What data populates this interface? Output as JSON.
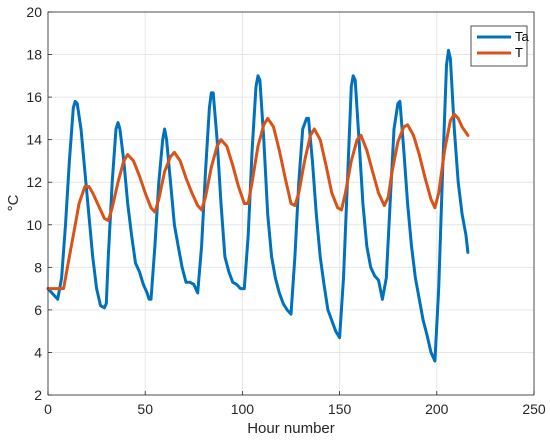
{
  "chart_data": {
    "type": "line",
    "title": "",
    "xlabel": "Hour number",
    "ylabel": "°C",
    "xlim": [
      0,
      250
    ],
    "ylim": [
      2,
      20
    ],
    "xticks": [
      0,
      50,
      100,
      150,
      200,
      250
    ],
    "yticks": [
      2,
      4,
      6,
      8,
      10,
      12,
      14,
      16,
      18,
      20
    ],
    "grid": true,
    "legend_position": "top-right",
    "series": [
      {
        "name": "Ta",
        "color": "#0072BD",
        "points": [
          [
            0,
            7.0
          ],
          [
            3,
            6.7
          ],
          [
            5,
            6.5
          ],
          [
            7,
            7.5
          ],
          [
            9,
            10.0
          ],
          [
            11,
            13.0
          ],
          [
            13,
            15.5
          ],
          [
            14,
            15.8
          ],
          [
            15,
            15.7
          ],
          [
            17,
            14.5
          ],
          [
            19,
            12.5
          ],
          [
            21,
            10.5
          ],
          [
            23,
            8.5
          ],
          [
            25,
            7.0
          ],
          [
            27,
            6.2
          ],
          [
            29,
            6.1
          ],
          [
            30,
            6.3
          ],
          [
            31,
            8.5
          ],
          [
            33,
            12.0
          ],
          [
            35,
            14.5
          ],
          [
            36,
            14.8
          ],
          [
            37,
            14.5
          ],
          [
            39,
            13.0
          ],
          [
            41,
            11.0
          ],
          [
            43,
            9.5
          ],
          [
            45,
            8.2
          ],
          [
            47,
            7.8
          ],
          [
            49,
            7.2
          ],
          [
            51,
            6.8
          ],
          [
            52,
            6.5
          ],
          [
            53,
            6.5
          ],
          [
            55,
            9.0
          ],
          [
            57,
            12.0
          ],
          [
            59,
            14.0
          ],
          [
            60,
            14.5
          ],
          [
            61,
            14.0
          ],
          [
            63,
            12.0
          ],
          [
            65,
            10.0
          ],
          [
            67,
            9.0
          ],
          [
            69,
            8.0
          ],
          [
            71,
            7.3
          ],
          [
            73,
            7.3
          ],
          [
            75,
            7.2
          ],
          [
            77,
            6.8
          ],
          [
            79,
            9.0
          ],
          [
            81,
            12.5
          ],
          [
            83,
            15.5
          ],
          [
            84,
            16.2
          ],
          [
            85,
            16.2
          ],
          [
            87,
            14.0
          ],
          [
            89,
            11.0
          ],
          [
            91,
            8.5
          ],
          [
            93,
            7.8
          ],
          [
            95,
            7.3
          ],
          [
            97,
            7.2
          ],
          [
            99,
            7.0
          ],
          [
            101,
            7.0
          ],
          [
            103,
            9.5
          ],
          [
            105,
            13.5
          ],
          [
            107,
            16.5
          ],
          [
            108,
            17.0
          ],
          [
            109,
            16.8
          ],
          [
            111,
            14.0
          ],
          [
            113,
            10.5
          ],
          [
            115,
            8.5
          ],
          [
            117,
            7.5
          ],
          [
            119,
            6.8
          ],
          [
            121,
            6.3
          ],
          [
            123,
            6.0
          ],
          [
            125,
            5.8
          ],
          [
            127,
            8.5
          ],
          [
            129,
            12.0
          ],
          [
            131,
            14.5
          ],
          [
            133,
            15.0
          ],
          [
            134,
            15.0
          ],
          [
            136,
            13.0
          ],
          [
            138,
            10.5
          ],
          [
            140,
            8.5
          ],
          [
            142,
            7.2
          ],
          [
            144,
            6.0
          ],
          [
            146,
            5.5
          ],
          [
            148,
            5.0
          ],
          [
            150,
            4.7
          ],
          [
            152,
            7.5
          ],
          [
            154,
            12.0
          ],
          [
            156,
            16.5
          ],
          [
            157,
            17.0
          ],
          [
            158,
            16.8
          ],
          [
            160,
            14.0
          ],
          [
            162,
            11.0
          ],
          [
            164,
            9.0
          ],
          [
            166,
            8.0
          ],
          [
            168,
            7.6
          ],
          [
            170,
            7.4
          ],
          [
            172,
            6.5
          ],
          [
            174,
            7.5
          ],
          [
            176,
            11.0
          ],
          [
            178,
            14.5
          ],
          [
            180,
            15.7
          ],
          [
            181,
            15.8
          ],
          [
            183,
            13.5
          ],
          [
            185,
            11.0
          ],
          [
            187,
            9.0
          ],
          [
            189,
            7.5
          ],
          [
            191,
            6.5
          ],
          [
            193,
            5.5
          ],
          [
            195,
            4.8
          ],
          [
            197,
            4.0
          ],
          [
            199,
            3.6
          ],
          [
            201,
            7.0
          ],
          [
            203,
            12.5
          ],
          [
            205,
            17.5
          ],
          [
            206,
            18.2
          ],
          [
            207,
            17.8
          ],
          [
            209,
            14.5
          ],
          [
            211,
            12.0
          ],
          [
            213,
            10.5
          ],
          [
            215,
            9.5
          ],
          [
            216,
            8.7
          ]
        ]
      },
      {
        "name": "T",
        "color": "#D95319",
        "points": [
          [
            0,
            7.0
          ],
          [
            8,
            7.0
          ],
          [
            10,
            8.0
          ],
          [
            13,
            9.5
          ],
          [
            16,
            11.0
          ],
          [
            19,
            11.8
          ],
          [
            21,
            11.8
          ],
          [
            23,
            11.5
          ],
          [
            26,
            10.9
          ],
          [
            29,
            10.3
          ],
          [
            31,
            10.2
          ],
          [
            33,
            10.8
          ],
          [
            36,
            12.0
          ],
          [
            39,
            13.0
          ],
          [
            41,
            13.3
          ],
          [
            44,
            13.0
          ],
          [
            47,
            12.3
          ],
          [
            50,
            11.5
          ],
          [
            53,
            10.8
          ],
          [
            55,
            10.6
          ],
          [
            57,
            11.2
          ],
          [
            60,
            12.5
          ],
          [
            63,
            13.2
          ],
          [
            65,
            13.4
          ],
          [
            68,
            13.0
          ],
          [
            71,
            12.2
          ],
          [
            74,
            11.5
          ],
          [
            77,
            10.9
          ],
          [
            79,
            10.7
          ],
          [
            81,
            11.3
          ],
          [
            84,
            12.7
          ],
          [
            87,
            13.7
          ],
          [
            89,
            14.0
          ],
          [
            92,
            13.7
          ],
          [
            95,
            12.8
          ],
          [
            98,
            11.8
          ],
          [
            101,
            11.0
          ],
          [
            103,
            11.0
          ],
          [
            105,
            12.0
          ],
          [
            108,
            13.7
          ],
          [
            111,
            14.7
          ],
          [
            113,
            15.0
          ],
          [
            116,
            14.6
          ],
          [
            119,
            13.5
          ],
          [
            122,
            12.2
          ],
          [
            125,
            11.0
          ],
          [
            127,
            10.9
          ],
          [
            129,
            11.5
          ],
          [
            132,
            13.0
          ],
          [
            135,
            14.2
          ],
          [
            137,
            14.5
          ],
          [
            140,
            14.0
          ],
          [
            143,
            12.8
          ],
          [
            146,
            11.5
          ],
          [
            149,
            10.8
          ],
          [
            151,
            10.7
          ],
          [
            153,
            11.5
          ],
          [
            156,
            13.0
          ],
          [
            159,
            14.0
          ],
          [
            161,
            14.2
          ],
          [
            164,
            13.5
          ],
          [
            167,
            12.5
          ],
          [
            170,
            11.5
          ],
          [
            173,
            10.9
          ],
          [
            175,
            11.3
          ],
          [
            177,
            12.5
          ],
          [
            180,
            13.9
          ],
          [
            183,
            14.6
          ],
          [
            185,
            14.7
          ],
          [
            188,
            14.2
          ],
          [
            191,
            13.3
          ],
          [
            194,
            12.2
          ],
          [
            197,
            11.2
          ],
          [
            199,
            10.8
          ],
          [
            201,
            11.5
          ],
          [
            204,
            13.5
          ],
          [
            207,
            14.9
          ],
          [
            209,
            15.2
          ],
          [
            211,
            15.0
          ],
          [
            213,
            14.6
          ],
          [
            216,
            14.2
          ]
        ]
      }
    ]
  }
}
